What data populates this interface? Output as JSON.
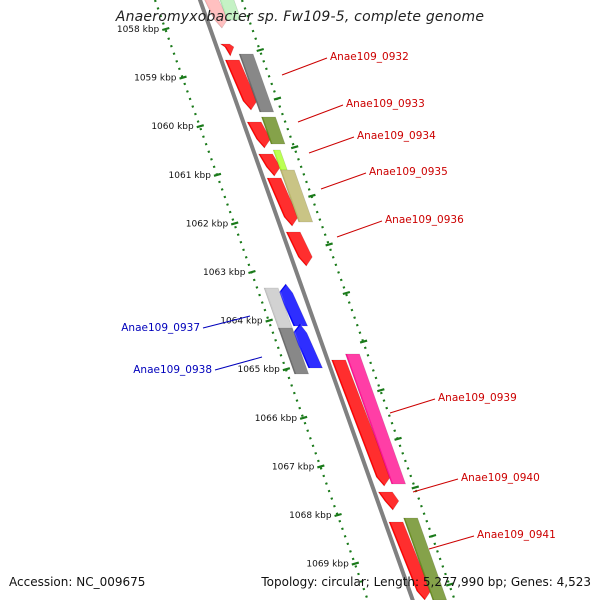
{
  "title": "Anaeromyxobacter sp. Fw109-5, complete genome",
  "footer": {
    "accession": "Accession: NC_009675",
    "summary": "Topology: circular; Length: 5,277,990 bp; Genes: 4,523"
  },
  "ruler_ticks": [
    {
      "label": "1058 kbp"
    },
    {
      "label": "1059 kbp"
    },
    {
      "label": "1060 kbp"
    },
    {
      "label": "1061 kbp"
    },
    {
      "label": "1062 kbp"
    },
    {
      "label": "1063 kbp"
    },
    {
      "label": "1064 kbp"
    },
    {
      "label": "1065 kbp"
    },
    {
      "label": "1066 kbp"
    },
    {
      "label": "1067 kbp"
    },
    {
      "label": "1068 kbp"
    },
    {
      "label": "1069 kbp"
    }
  ],
  "gene_labels": [
    {
      "name": "Anae109_0932",
      "color": "#cc0000"
    },
    {
      "name": "Anae109_0933",
      "color": "#cc0000"
    },
    {
      "name": "Anae109_0934",
      "color": "#cc0000"
    },
    {
      "name": "Anae109_0935",
      "color": "#cc0000"
    },
    {
      "name": "Anae109_0936",
      "color": "#cc0000"
    },
    {
      "name": "Anae109_0937",
      "color": "#0000bb"
    },
    {
      "name": "Anae109_0938",
      "color": "#0000bb"
    },
    {
      "name": "Anae109_0939",
      "color": "#cc0000"
    },
    {
      "name": "Anae109_0940",
      "color": "#cc0000"
    },
    {
      "name": "Anae109_0941",
      "color": "#cc0000"
    }
  ],
  "colors": {
    "forward_gene": "#ff0000",
    "reverse_gene": "#0000ff",
    "backbone": "#808080",
    "ruler": "#1a7a1a",
    "cog_gray_dark": "#6e6e6e",
    "cog_gray_light": "#c8c8c8",
    "cog_olive": "#6b8e23",
    "cog_lime": "#adff2f",
    "cog_khaki": "#bdb76b",
    "cog_pink": "#ff1493"
  }
}
